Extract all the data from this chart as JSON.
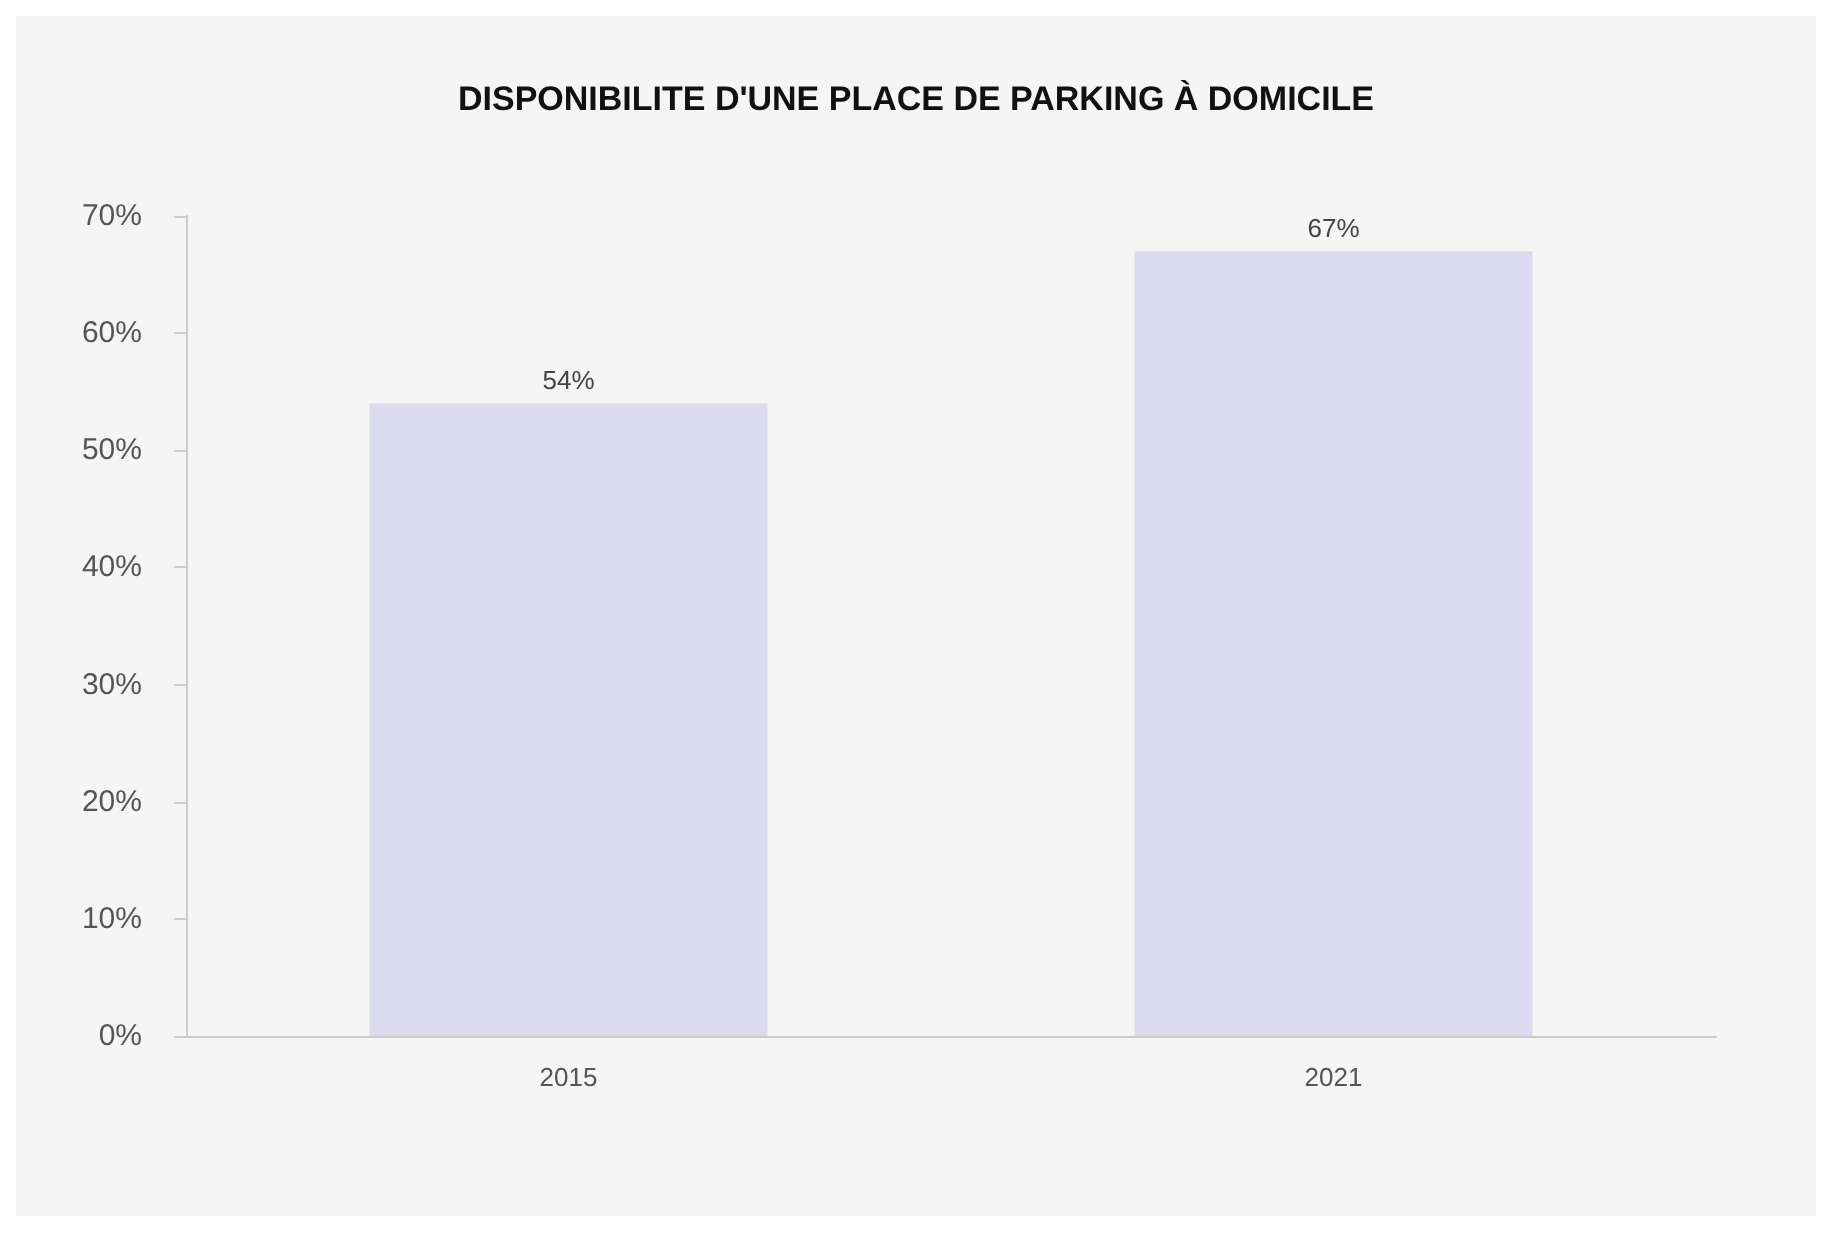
{
  "chart_data": {
    "type": "bar",
    "title": "DISPONIBILITE D'UNE PLACE DE PARKING À DOMICILE",
    "categories": [
      "2015",
      "2021"
    ],
    "values": [
      54,
      67
    ],
    "value_labels": [
      "54%",
      "67%"
    ],
    "color": "#dcdaee",
    "ylim": [
      0,
      70
    ],
    "yticks": [
      {
        "value": 0,
        "label": "0%"
      },
      {
        "value": 10,
        "label": "10%"
      },
      {
        "value": 20,
        "label": "20%"
      },
      {
        "value": 30,
        "label": "30%"
      },
      {
        "value": 40,
        "label": "40%"
      },
      {
        "value": 50,
        "label": "50%"
      },
      {
        "value": 60,
        "label": "60%"
      },
      {
        "value": 70,
        "label": "70%"
      }
    ],
    "grid": false
  }
}
